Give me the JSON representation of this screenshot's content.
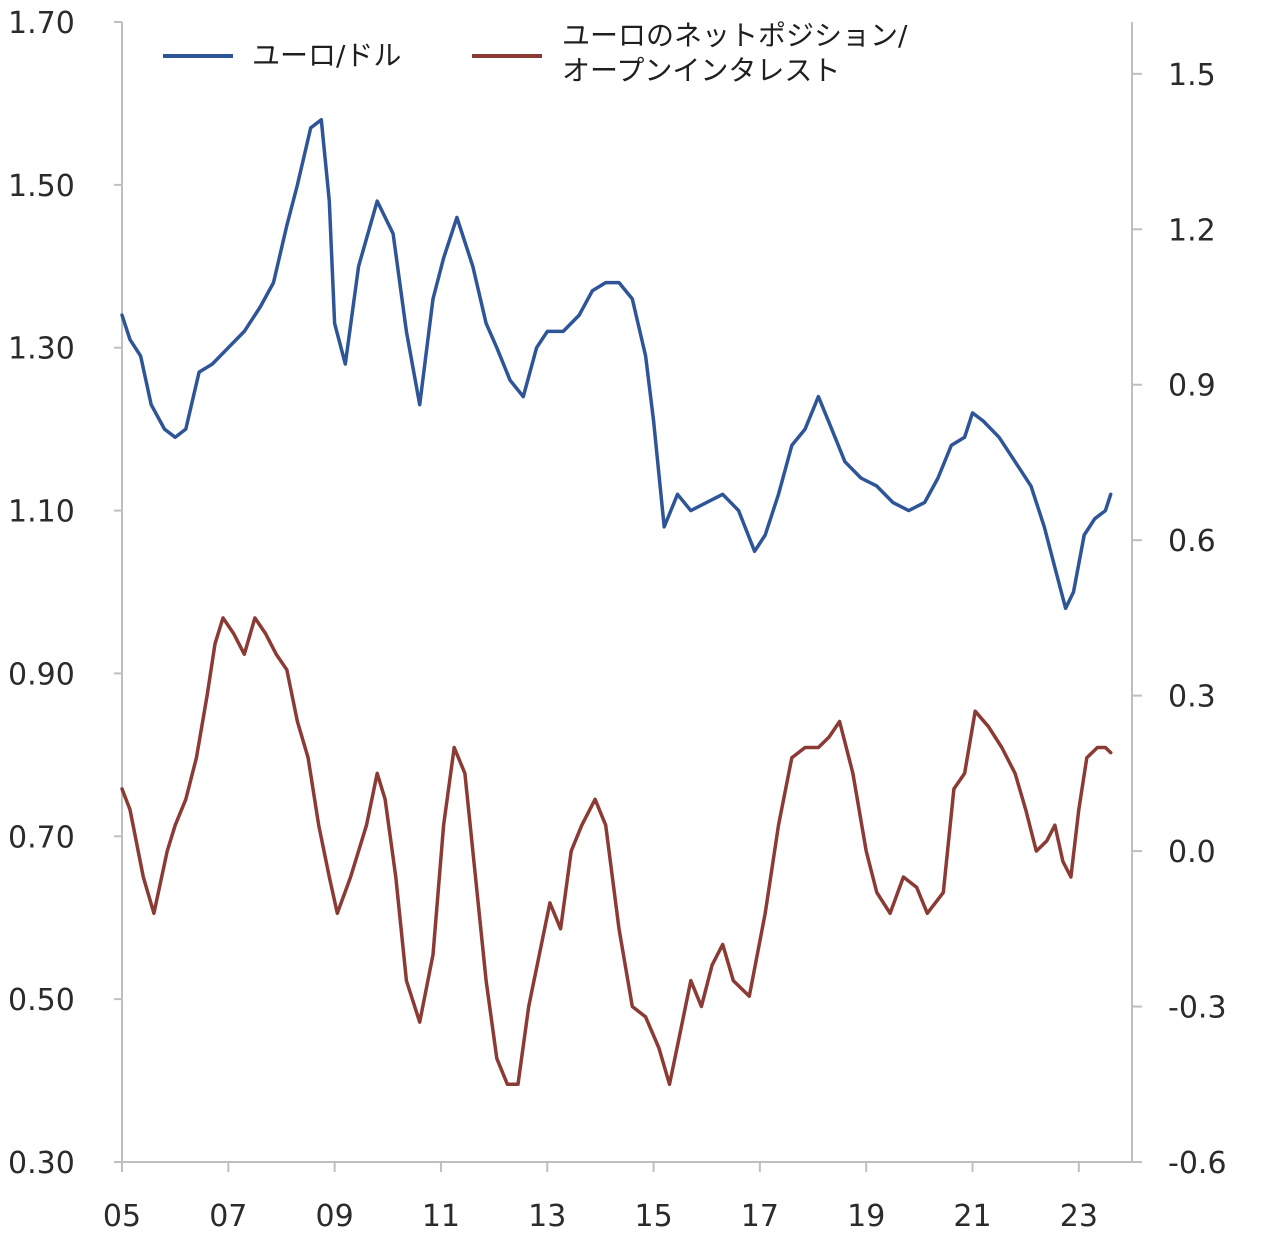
{
  "chart_data": {
    "type": "line",
    "x_axis": {
      "tick_labels": [
        "05",
        "07",
        "09",
        "11",
        "13",
        "15",
        "17",
        "19",
        "21",
        "23"
      ],
      "tick_years": [
        2005,
        2007,
        2009,
        2011,
        2013,
        2015,
        2017,
        2019,
        2021,
        2023
      ],
      "range": [
        2005.0,
        2024.0
      ]
    },
    "y_left": {
      "tick_labels": [
        "1.70",
        "1.50",
        "1.30",
        "1.10",
        "0.90",
        "0.70",
        "0.50",
        "0.30"
      ],
      "ticks": [
        1.7,
        1.5,
        1.3,
        1.1,
        0.9,
        0.7,
        0.5,
        0.3
      ],
      "range": [
        0.3,
        1.7
      ]
    },
    "y_right": {
      "tick_labels": [
        "1.5",
        "1.2",
        "0.9",
        "0.6",
        "0.3",
        "0.0",
        "-0.3",
        "-0.6"
      ],
      "ticks": [
        1.5,
        1.2,
        0.9,
        0.6,
        0.3,
        0.0,
        -0.3,
        -0.6
      ],
      "range": [
        -0.6,
        1.6
      ]
    },
    "grid": false,
    "legend_position": "top",
    "series": [
      {
        "name": "ユーロ/ドル",
        "axis": "left",
        "color": "#2e5597",
        "x": [
          2005.0,
          2005.15,
          2005.35,
          2005.55,
          2005.8,
          2006.0,
          2006.2,
          2006.45,
          2006.7,
          2007.0,
          2007.3,
          2007.6,
          2007.85,
          2008.1,
          2008.3,
          2008.55,
          2008.75,
          2008.9,
          2009.0,
          2009.2,
          2009.45,
          2009.8,
          2010.1,
          2010.35,
          2010.6,
          2010.85,
          2011.05,
          2011.3,
          2011.6,
          2011.85,
          2012.05,
          2012.3,
          2012.55,
          2012.8,
          2013.0,
          2013.3,
          2013.6,
          2013.85,
          2014.1,
          2014.35,
          2014.6,
          2014.85,
          2015.0,
          2015.2,
          2015.45,
          2015.7,
          2016.0,
          2016.3,
          2016.6,
          2016.9,
          2017.1,
          2017.35,
          2017.6,
          2017.85,
          2018.1,
          2018.35,
          2018.6,
          2018.9,
          2019.2,
          2019.5,
          2019.8,
          2020.1,
          2020.35,
          2020.6,
          2020.85,
          2021.0,
          2021.2,
          2021.5,
          2021.8,
          2022.1,
          2022.35,
          2022.55,
          2022.75,
          2022.9,
          2023.1,
          2023.3,
          2023.5,
          2023.6
        ],
        "values": [
          1.34,
          1.31,
          1.29,
          1.23,
          1.2,
          1.19,
          1.2,
          1.27,
          1.28,
          1.3,
          1.32,
          1.35,
          1.38,
          1.45,
          1.5,
          1.57,
          1.58,
          1.48,
          1.33,
          1.28,
          1.4,
          1.48,
          1.44,
          1.32,
          1.23,
          1.36,
          1.41,
          1.46,
          1.4,
          1.33,
          1.3,
          1.26,
          1.24,
          1.3,
          1.32,
          1.32,
          1.34,
          1.37,
          1.38,
          1.38,
          1.36,
          1.29,
          1.21,
          1.08,
          1.12,
          1.1,
          1.11,
          1.12,
          1.1,
          1.05,
          1.07,
          1.12,
          1.18,
          1.2,
          1.24,
          1.2,
          1.16,
          1.14,
          1.13,
          1.11,
          1.1,
          1.11,
          1.14,
          1.18,
          1.19,
          1.22,
          1.21,
          1.19,
          1.16,
          1.13,
          1.08,
          1.03,
          0.98,
          1.0,
          1.07,
          1.09,
          1.1,
          1.12
        ]
      },
      {
        "name": "ユーロのネットポジション/\nオープンインタレスト",
        "axis": "right",
        "color": "#8b3b34",
        "x": [
          2005.0,
          2005.15,
          2005.4,
          2005.6,
          2005.85,
          2006.0,
          2006.2,
          2006.4,
          2006.6,
          2006.75,
          2006.9,
          2007.1,
          2007.3,
          2007.5,
          2007.7,
          2007.9,
          2008.1,
          2008.3,
          2008.5,
          2008.7,
          2008.9,
          2009.05,
          2009.3,
          2009.6,
          2009.8,
          2009.95,
          2010.15,
          2010.35,
          2010.6,
          2010.85,
          2011.05,
          2011.25,
          2011.45,
          2011.65,
          2011.85,
          2012.05,
          2012.25,
          2012.45,
          2012.65,
          2012.85,
          2013.05,
          2013.25,
          2013.45,
          2013.65,
          2013.9,
          2014.1,
          2014.35,
          2014.6,
          2014.85,
          2015.1,
          2015.3,
          2015.5,
          2015.7,
          2015.9,
          2016.1,
          2016.3,
          2016.5,
          2016.8,
          2017.1,
          2017.35,
          2017.6,
          2017.85,
          2018.1,
          2018.3,
          2018.5,
          2018.75,
          2019.0,
          2019.2,
          2019.45,
          2019.7,
          2019.95,
          2020.15,
          2020.3,
          2020.45,
          2020.65,
          2020.85,
          2021.05,
          2021.3,
          2021.55,
          2021.8,
          2022.0,
          2022.2,
          2022.4,
          2022.55,
          2022.7,
          2022.85,
          2023.0,
          2023.15,
          2023.35,
          2023.5,
          2023.6
        ],
        "values": [
          0.12,
          0.08,
          -0.05,
          -0.12,
          0.0,
          0.05,
          0.1,
          0.18,
          0.3,
          0.4,
          0.45,
          0.42,
          0.38,
          0.45,
          0.42,
          0.38,
          0.35,
          0.25,
          0.18,
          0.05,
          -0.05,
          -0.12,
          -0.05,
          0.05,
          0.15,
          0.1,
          -0.05,
          -0.25,
          -0.33,
          -0.2,
          0.05,
          0.2,
          0.15,
          -0.05,
          -0.25,
          -0.4,
          -0.45,
          -0.45,
          -0.3,
          -0.2,
          -0.1,
          -0.15,
          0.0,
          0.05,
          0.1,
          0.05,
          -0.15,
          -0.3,
          -0.32,
          -0.38,
          -0.45,
          -0.35,
          -0.25,
          -0.3,
          -0.22,
          -0.18,
          -0.25,
          -0.28,
          -0.12,
          0.05,
          0.18,
          0.2,
          0.2,
          0.22,
          0.25,
          0.15,
          0.0,
          -0.08,
          -0.12,
          -0.05,
          -0.07,
          -0.12,
          -0.1,
          -0.08,
          0.12,
          0.15,
          0.27,
          0.24,
          0.2,
          0.15,
          0.08,
          0.0,
          0.02,
          0.05,
          -0.02,
          -0.05,
          0.08,
          0.18,
          0.2,
          0.2,
          0.19
        ]
      }
    ]
  }
}
